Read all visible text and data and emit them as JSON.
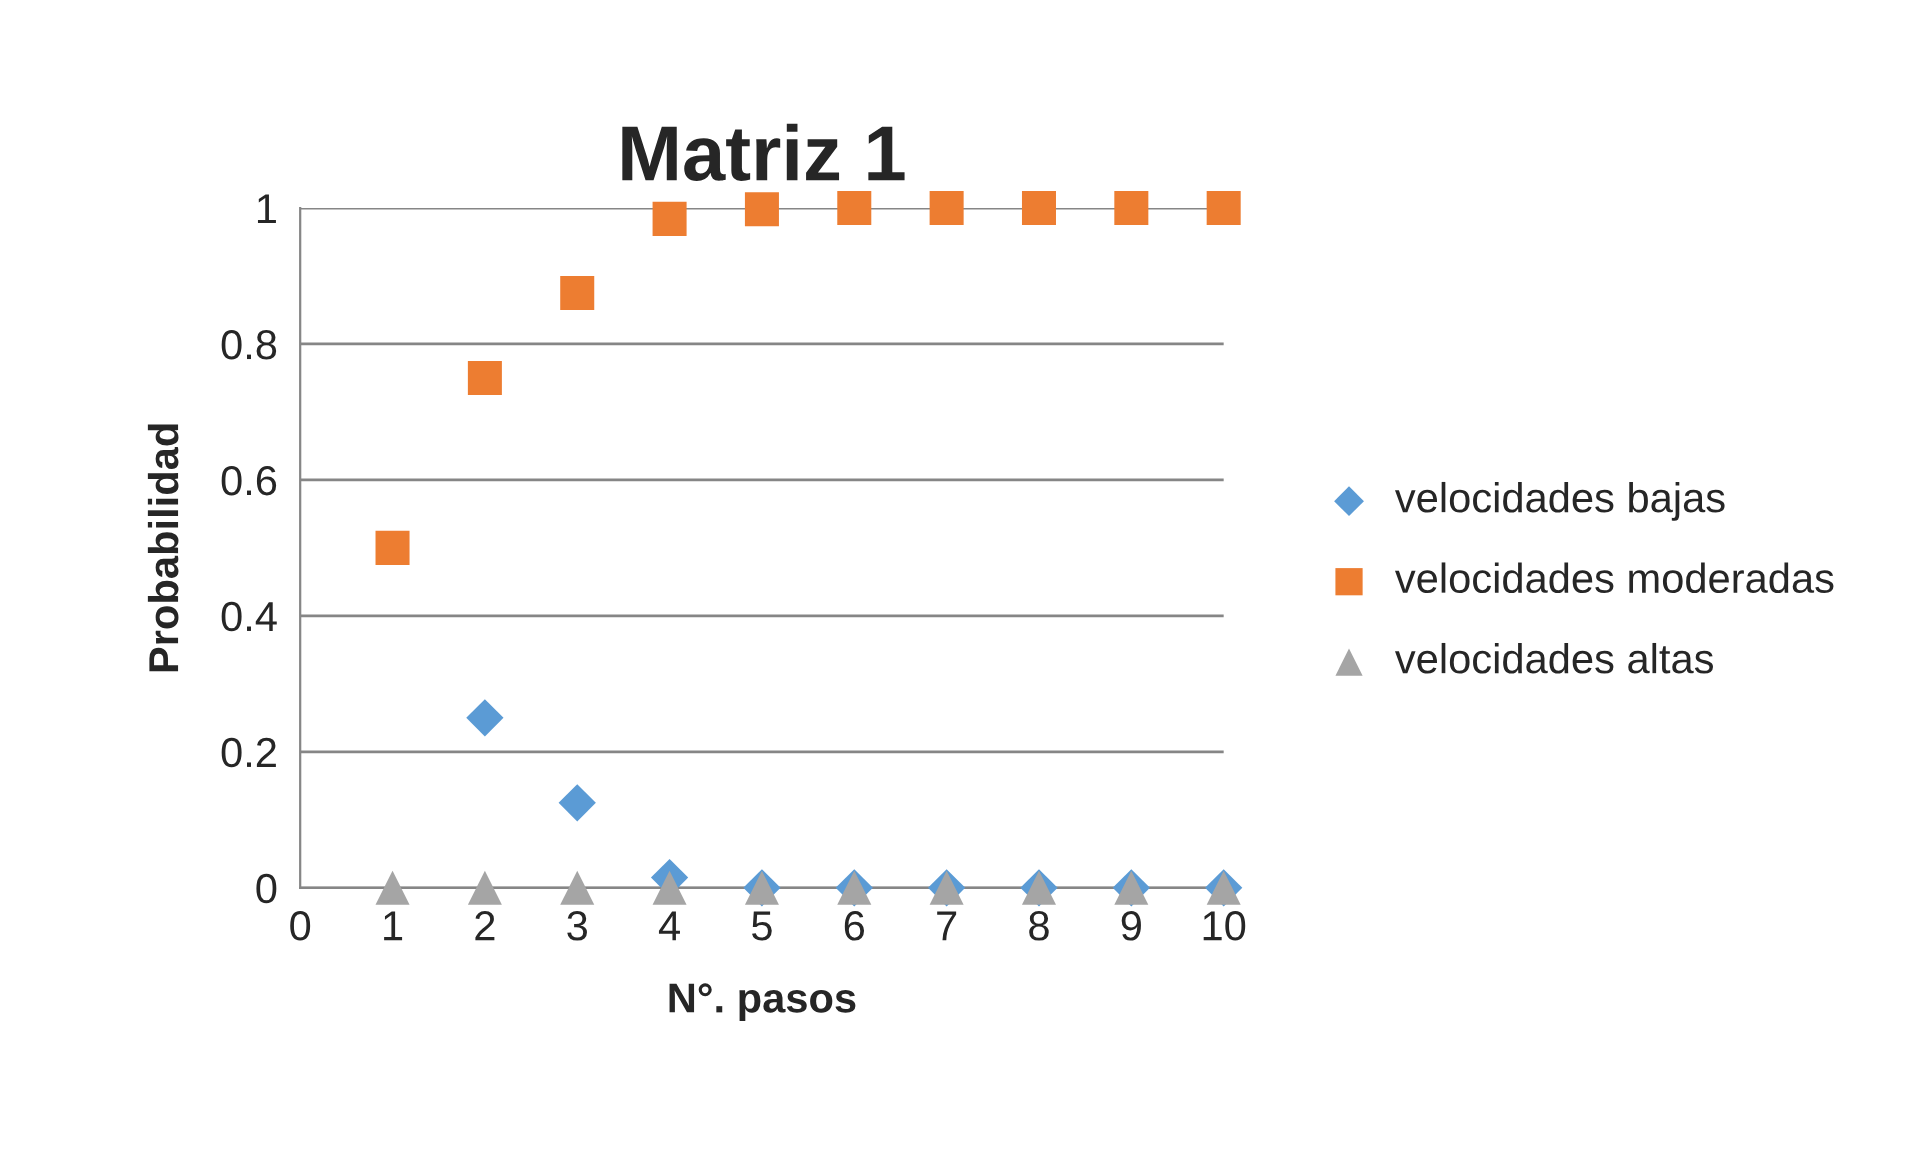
{
  "chart_data": {
    "type": "scatter",
    "title": "Matriz 1",
    "xlabel": "N°. pasos",
    "ylabel": "Probabilidad",
    "x": [
      1,
      2,
      3,
      4,
      5,
      6,
      7,
      8,
      9,
      10
    ],
    "series": [
      {
        "name": "velocidades bajas",
        "color": "#5b9bd5",
        "marker": "diamond",
        "values": [
          null,
          0.25,
          0.125,
          0.015,
          0,
          0,
          0,
          0,
          0,
          0
        ]
      },
      {
        "name": "velocidades moderadas",
        "color": "#ed7d31",
        "marker": "square",
        "values": [
          0.5,
          0.75,
          0.875,
          0.984,
          0.998,
          1,
          1,
          1,
          1,
          1
        ]
      },
      {
        "name": "velocidades altas",
        "color": "#a5a5a5",
        "marker": "triangle",
        "values": [
          0,
          0,
          0,
          0,
          0,
          0,
          0,
          0,
          0,
          0
        ]
      }
    ],
    "xlim": [
      0,
      10
    ],
    "xticks": [
      0,
      1,
      2,
      3,
      4,
      5,
      6,
      7,
      8,
      9,
      10
    ],
    "ylim": [
      0,
      1
    ],
    "yticks": [
      0,
      0.2,
      0.4,
      0.6,
      0.8,
      1
    ],
    "grid": "y",
    "legend": "right"
  }
}
